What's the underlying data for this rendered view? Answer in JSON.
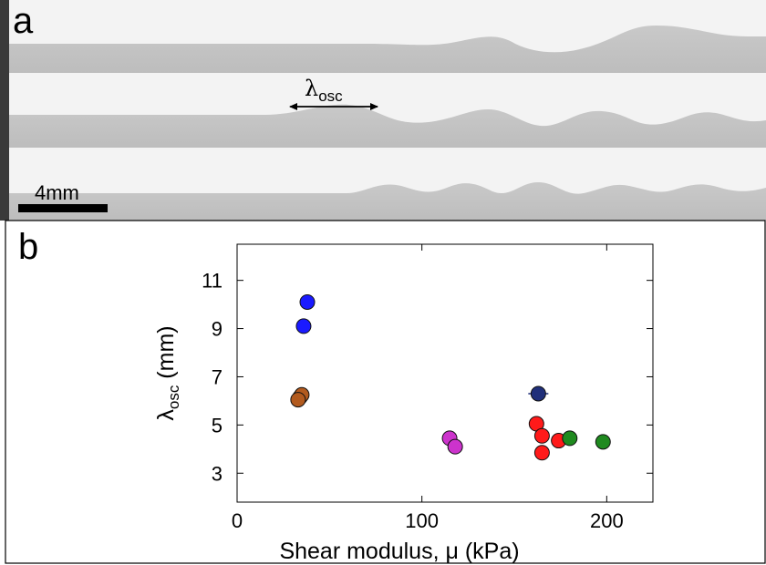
{
  "panel_a": {
    "label": "a",
    "scale_bar_label": "4mm",
    "lambda_symbol": "λ",
    "lambda_subscript": "osc"
  },
  "panel_b": {
    "label": "b"
  },
  "chart_data": {
    "type": "scatter",
    "title": "",
    "xlabel": "Shear modulus, μ (kPa)",
    "ylabel_symbol": "λ",
    "ylabel_subscript": "osc",
    "ylabel_unit": " (mm)",
    "xlim": [
      0,
      225
    ],
    "ylim": [
      1.8,
      12.5
    ],
    "xticks": [
      0,
      100,
      200
    ],
    "yticks": [
      3,
      5,
      7,
      9,
      11
    ],
    "grid": false,
    "series": [
      {
        "color": "#1a1aff",
        "points": [
          {
            "x": 38,
            "y": 10.1
          },
          {
            "x": 36,
            "y": 9.1
          }
        ]
      },
      {
        "color": "#b25a1e",
        "points": [
          {
            "x": 34,
            "y": 6.15
          },
          {
            "x": 35,
            "y": 6.25
          },
          {
            "x": 33,
            "y": 6.05
          }
        ]
      },
      {
        "color": "#cc33cc",
        "points": [
          {
            "x": 115,
            "y": 4.45
          },
          {
            "x": 118,
            "y": 4.1
          }
        ]
      },
      {
        "color": "#1f2f7a",
        "points": [
          {
            "x": 163,
            "y": 6.3
          }
        ]
      },
      {
        "color": "#ff1a1a",
        "points": [
          {
            "x": 162,
            "y": 5.05
          },
          {
            "x": 165,
            "y": 4.55
          },
          {
            "x": 174,
            "y": 4.35
          },
          {
            "x": 165,
            "y": 3.85
          }
        ]
      },
      {
        "color": "#1f8a1f",
        "points": [
          {
            "x": 180,
            "y": 4.45
          },
          {
            "x": 198,
            "y": 4.3
          }
        ]
      }
    ]
  }
}
